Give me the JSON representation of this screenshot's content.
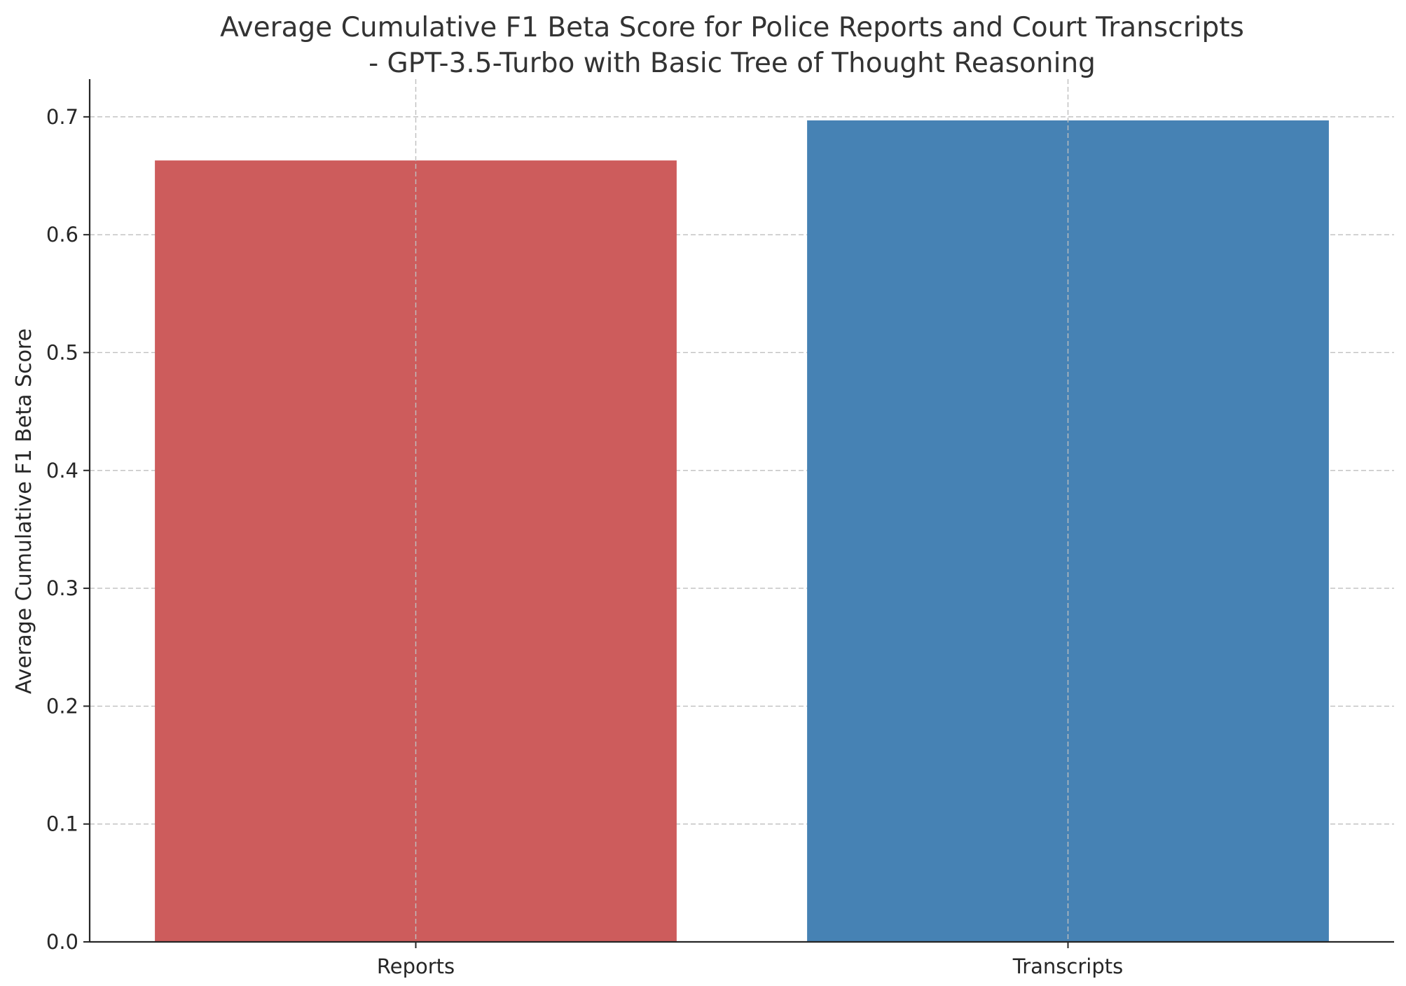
{
  "chart_data": {
    "type": "bar",
    "title_line1": "Average Cumulative F1 Beta Score for Police Reports and Court Transcripts",
    "title_line2": "- GPT-3.5-Turbo with Basic Tree of Thought Reasoning",
    "xlabel": "",
    "ylabel": "Average Cumulative F1 Beta Score",
    "categories": [
      "Reports",
      "Transcripts"
    ],
    "values": [
      0.663,
      0.697
    ],
    "colors": [
      "#cd5c5c",
      "#4682b4"
    ],
    "ylim": [
      0,
      0.732
    ],
    "yticks": [
      "0.0",
      "0.1",
      "0.2",
      "0.3",
      "0.4",
      "0.5",
      "0.6",
      "0.7"
    ],
    "grid": true,
    "legend": "none"
  }
}
